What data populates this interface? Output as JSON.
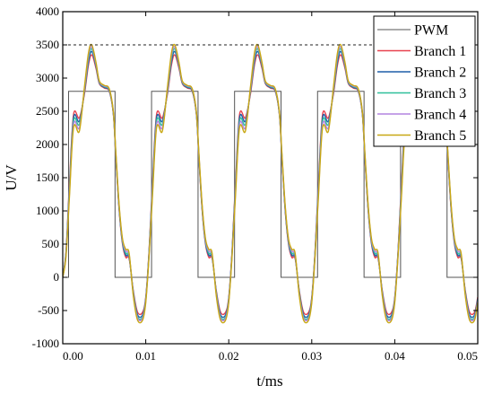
{
  "chart_data": {
    "type": "line",
    "xlabel": "t/ms",
    "ylabel": "U/V",
    "xlim": [
      0,
      0.05
    ],
    "ylim": [
      -1000,
      4000
    ],
    "xticks": [
      "0.00",
      "0.01",
      "0.02",
      "0.03",
      "0.04",
      "0.05"
    ],
    "yticks": [
      "-1000",
      "-500",
      "0",
      "500",
      "1000",
      "1500",
      "2000",
      "2500",
      "3000",
      "3500",
      "4000"
    ],
    "reference_line": {
      "y": 3500,
      "style": "dashed"
    },
    "legend_position": "top-right",
    "grid": false,
    "series": [
      {
        "name": "PWM",
        "color": "#555555",
        "x": [
          0,
          0.0007,
          0.0007,
          0.0063,
          0.0063,
          0.0107,
          0.0107,
          0.0163,
          0.0163,
          0.0207,
          0.0207,
          0.0263,
          0.0263,
          0.0307,
          0.0307,
          0.0363,
          0.0363,
          0.0407,
          0.0407,
          0.0463,
          0.0463,
          0.05
        ],
        "values": [
          0,
          0,
          2800,
          2800,
          0,
          0,
          2800,
          2800,
          0,
          0,
          2800,
          2800,
          0,
          0,
          2800,
          2800,
          0,
          0,
          2800,
          2800,
          0,
          0
        ]
      },
      {
        "name": "Branch 1",
        "color": "#e8424f",
        "x": [
          0,
          0.0004,
          0.0008,
          0.0013,
          0.002,
          0.0026,
          0.0031,
          0.0035,
          0.004,
          0.0044,
          0.005,
          0.0056,
          0.0061,
          0.0064,
          0.0068,
          0.0072,
          0.0076,
          0.008,
          0.0085,
          0.009,
          0.0096,
          0.01
        ],
        "values": [
          0,
          400,
          1400,
          2450,
          2400,
          2750,
          3200,
          3350,
          3150,
          2920,
          2850,
          2800,
          2450,
          1800,
          1000,
          500,
          300,
          280,
          -200,
          -520,
          -530,
          -300
        ]
      },
      {
        "name": "Branch 2",
        "color": "#1f5fa8",
        "x": [
          0,
          0.0004,
          0.0008,
          0.0013,
          0.002,
          0.0026,
          0.0031,
          0.0035,
          0.004,
          0.0044,
          0.005,
          0.0056,
          0.0061,
          0.0064,
          0.0068,
          0.0072,
          0.0076,
          0.008,
          0.0085,
          0.009,
          0.0096,
          0.01
        ],
        "values": [
          0,
          380,
          1350,
          2400,
          2350,
          2780,
          3250,
          3400,
          3180,
          2930,
          2860,
          2810,
          2460,
          1820,
          1020,
          520,
          330,
          300,
          -220,
          -560,
          -570,
          -320
        ]
      },
      {
        "name": "Branch 3",
        "color": "#2fbf9a",
        "x": [
          0,
          0.0004,
          0.0008,
          0.0013,
          0.002,
          0.0026,
          0.0031,
          0.0035,
          0.004,
          0.0044,
          0.005,
          0.0056,
          0.0061,
          0.0064,
          0.0068,
          0.0072,
          0.0076,
          0.008,
          0.0085,
          0.009,
          0.0096,
          0.01
        ],
        "values": [
          0,
          360,
          1300,
          2350,
          2300,
          2800,
          3300,
          3440,
          3200,
          2940,
          2870,
          2820,
          2470,
          1840,
          1040,
          540,
          360,
          320,
          -240,
          -590,
          -600,
          -340
        ]
      },
      {
        "name": "Branch 4",
        "color": "#b483e0",
        "x": [
          0,
          0.0004,
          0.0008,
          0.0013,
          0.002,
          0.0026,
          0.0031,
          0.0035,
          0.004,
          0.0044,
          0.005,
          0.0056,
          0.0061,
          0.0064,
          0.0068,
          0.0072,
          0.0076,
          0.008,
          0.0085,
          0.009,
          0.0096,
          0.01
        ],
        "values": [
          0,
          340,
          1250,
          2300,
          2250,
          2820,
          3340,
          3470,
          3220,
          2950,
          2880,
          2830,
          2480,
          1860,
          1060,
          560,
          390,
          340,
          -260,
          -610,
          -620,
          -360
        ]
      },
      {
        "name": "Branch 5",
        "color": "#c8a814",
        "x": [
          0,
          0.0004,
          0.0008,
          0.0013,
          0.002,
          0.0026,
          0.0031,
          0.0035,
          0.004,
          0.0044,
          0.005,
          0.0056,
          0.0061,
          0.0064,
          0.0068,
          0.0072,
          0.0076,
          0.008,
          0.0085,
          0.009,
          0.0096,
          0.01
        ],
        "values": [
          0,
          320,
          1200,
          2250,
          2200,
          2850,
          3380,
          3500,
          3240,
          2960,
          2890,
          2840,
          2490,
          1880,
          1080,
          580,
          420,
          360,
          -280,
          -640,
          -650,
          -380
        ]
      }
    ]
  }
}
